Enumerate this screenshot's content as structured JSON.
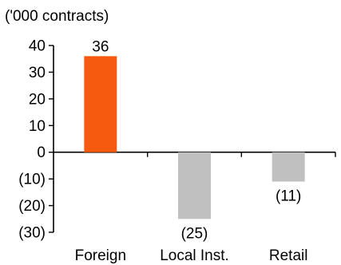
{
  "chart_data": {
    "type": "bar",
    "unit_label": "('000 contracts)",
    "categories": [
      "Foreign",
      "Local Inst.",
      "Retail"
    ],
    "values": [
      36,
      -25,
      -11
    ],
    "data_labels": [
      "36",
      "(25)",
      "(11)"
    ],
    "bar_colors": [
      "#f55a0f",
      "#c0c0c0",
      "#c0c0c0"
    ],
    "ylim": [
      -30,
      40
    ],
    "yticks": [
      40,
      30,
      20,
      10,
      0,
      -10,
      -20,
      -30
    ],
    "ytick_labels": [
      "40",
      "30",
      "20",
      "10",
      "0",
      "(10)",
      "(20)",
      "(30)"
    ],
    "grid": false,
    "legend": "none"
  }
}
